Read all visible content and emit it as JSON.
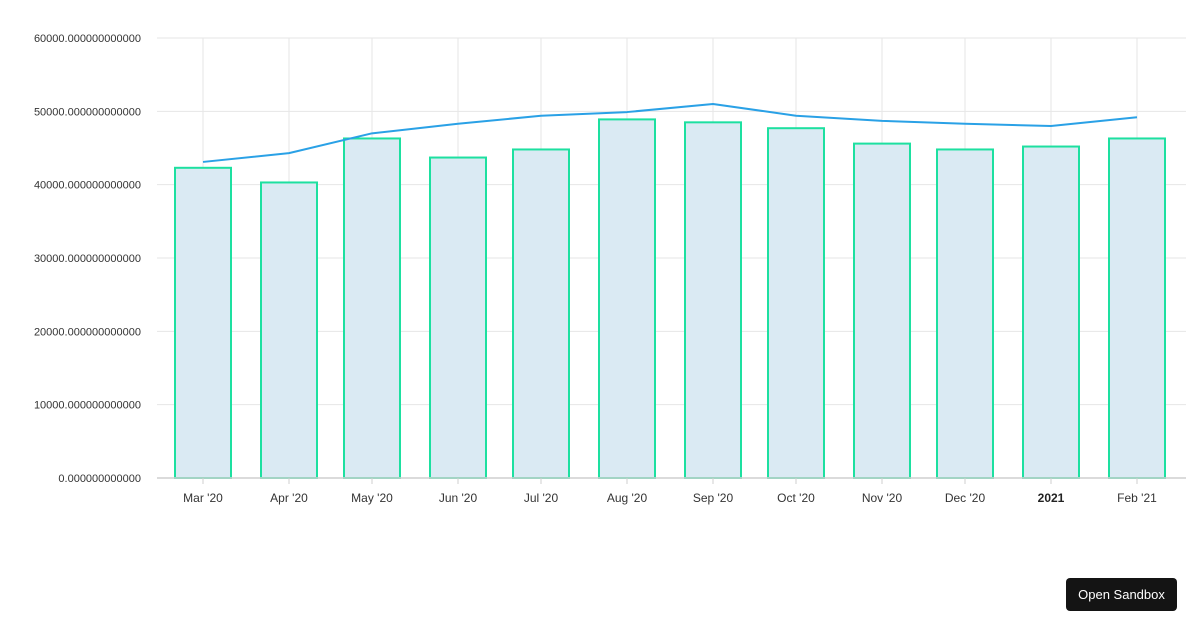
{
  "chart_data": {
    "type": "bar",
    "categories": [
      "Mar '20",
      "Apr '20",
      "May '20",
      "Jun '20",
      "Jul '20",
      "Aug '20",
      "Sep '20",
      "Oct '20",
      "Nov '20",
      "Dec '20",
      "2021",
      "Feb '21"
    ],
    "bold_categories": [
      "2021"
    ],
    "series": [
      {
        "type": "bar",
        "values": [
          42300,
          40300,
          46300,
          43700,
          44800,
          48900,
          48500,
          47700,
          45600,
          44800,
          45200,
          46300
        ],
        "fill": "#daeaf3",
        "stroke": "#1de0a0"
      },
      {
        "type": "line",
        "values": [
          43100,
          44300,
          47000,
          48300,
          49400,
          49900,
          51000,
          49400,
          48700,
          48300,
          48000,
          49200
        ],
        "stroke": "#2aa1e6"
      }
    ],
    "ylim": [
      0,
      60000
    ],
    "yticks": [
      0,
      10000,
      20000,
      30000,
      40000,
      50000,
      60000
    ],
    "ytick_labels": [
      "0.000000000000",
      "10000.000000000000",
      "20000.000000000000",
      "30000.000000000000",
      "40000.000000000000",
      "50000.000000000000",
      "60000.000000000000"
    ],
    "grid": true
  },
  "buttons": {
    "open_sandbox": "Open Sandbox"
  }
}
